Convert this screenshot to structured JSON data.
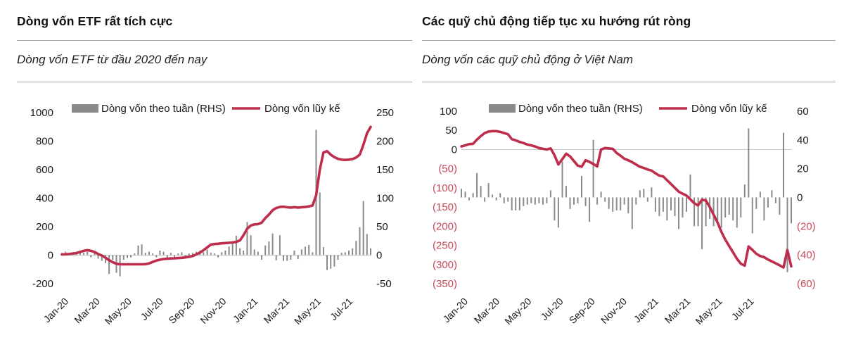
{
  "colors": {
    "line_red": "#be2d4b",
    "negative_tick_label_red": "#c84a5c",
    "bar_gray": "#8a8a8a",
    "grid_gray": "#c9c9c9",
    "text_dark": "#1a1a1a",
    "divider_gray": "#a6a6a6"
  },
  "chart_data": [
    {
      "type": "combo bar+line",
      "title": "Dòng vốn ETF rất tích cực",
      "subtitle": "Dòng vốn ETF từ đầu 2020 đến nay",
      "x_unit": "week",
      "x_tick_labels": [
        "Jan-20",
        "Mar-20",
        "May-20",
        "Jul-20",
        "Sep-20",
        "Nov-20",
        "Jan-21",
        "Mar-21",
        "May-21",
        "Jul-21"
      ],
      "left_axis": {
        "min": -200,
        "max": 1000,
        "ticks": [
          "1000",
          "800",
          "600",
          "400",
          "200",
          "0",
          "-200"
        ]
      },
      "right_axis": {
        "min": -50,
        "max": 250,
        "ticks": [
          "250",
          "200",
          "150",
          "100",
          "50",
          "0",
          "-50"
        ]
      },
      "grid": "zero-line only",
      "legend_position": "top",
      "series": [
        {
          "name": "Dòng vốn theo tuần (RHS)",
          "type": "bar",
          "axis": "right",
          "values": [
            4,
            6,
            3,
            5,
            6,
            8,
            4,
            6,
            -4,
            5,
            -6,
            -10,
            -14,
            -33,
            -8,
            -31,
            -37,
            -8,
            -5,
            -4,
            3,
            17,
            19,
            4,
            6,
            3,
            -4,
            8,
            6,
            -5,
            4,
            -6,
            3,
            5,
            -4,
            3,
            4,
            6,
            8,
            5,
            10,
            4,
            3,
            -4,
            5,
            8,
            15,
            22,
            34,
            12,
            8,
            58,
            35,
            10,
            6,
            -8,
            17,
            24,
            38,
            -9,
            35,
            -10,
            -10,
            -8,
            8,
            -7,
            10,
            15,
            18,
            5,
            220,
            110,
            14,
            -26,
            -24,
            -20,
            -8,
            4,
            5,
            8,
            12,
            25,
            49,
            95,
            37,
            12
          ]
        },
        {
          "name": "Dòng vốn lũy kế",
          "type": "line",
          "axis": "left",
          "values": [
            5,
            6,
            8,
            11,
            15,
            22,
            30,
            35,
            30,
            22,
            8,
            -2,
            -18,
            -35,
            -50,
            -60,
            -64,
            -64,
            -64,
            -64,
            -64,
            -64,
            -64,
            -63,
            -58,
            -48,
            -38,
            -32,
            -27,
            -25,
            -23,
            -22,
            -20,
            -19,
            -16,
            -12,
            -6,
            5,
            18,
            35,
            55,
            74,
            78,
            80,
            83,
            85,
            87,
            89,
            93,
            103,
            140,
            185,
            208,
            216,
            218,
            228,
            260,
            285,
            315,
            331,
            338,
            340,
            336,
            334,
            337,
            334,
            336,
            338,
            342,
            348,
            420,
            600,
            720,
            730,
            705,
            688,
            676,
            670,
            668,
            670,
            674,
            685,
            705,
            775,
            855,
            900
          ]
        }
      ]
    },
    {
      "type": "combo bar+line",
      "title": "Các quỹ chủ động tiếp tục xu hướng rút ròng",
      "subtitle": "Dòng vốn các quỹ chủ động ở Việt Nam",
      "x_unit": "week",
      "x_tick_labels": [
        "Jan-20",
        "Mar-20",
        "May-20",
        "Jul-20",
        "Sep-20",
        "Nov-20",
        "Jan-21",
        "Mar-21",
        "May-21",
        "Jul-21"
      ],
      "left_axis": {
        "min": -350,
        "max": 100,
        "ticks": [
          "100",
          "50",
          "0",
          "(50)",
          "(100)",
          "(150)",
          "(200)",
          "(250)",
          "(300)",
          "(350)"
        ]
      },
      "right_axis": {
        "min": -60,
        "max": 60,
        "ticks": [
          "60",
          "40",
          "20",
          "0",
          "(20)",
          "(40)",
          "(60)"
        ]
      },
      "grid": "zero-line only",
      "legend_position": "top",
      "series": [
        {
          "name": "Dòng vốn theo tuần (RHS)",
          "type": "bar",
          "axis": "right",
          "values": [
            6,
            4,
            -2,
            3,
            17,
            8,
            -3,
            10,
            2,
            -2,
            3,
            -4,
            -3,
            -9,
            -9,
            -9,
            -6,
            -5,
            -4,
            -5,
            -4,
            -5,
            -4,
            5,
            -16,
            -21,
            25,
            8,
            -8,
            -5,
            -4,
            15,
            -6,
            -17,
            40,
            -5,
            4,
            -3,
            -8,
            -10,
            -9,
            -9,
            -5,
            -11,
            -22,
            -5,
            5,
            6,
            -3,
            7,
            -10,
            -13,
            -10,
            -16,
            -9,
            -13,
            -22,
            -14,
            -10,
            16,
            -20,
            -20,
            -36,
            -20,
            -15,
            -20,
            -16,
            -21,
            -14,
            -12,
            -16,
            -21,
            -14,
            9,
            48,
            -25,
            -8,
            4,
            -16,
            -7,
            5,
            -4,
            -12,
            45,
            -52,
            -18
          ]
        },
        {
          "name": "Dòng vốn lũy kế",
          "type": "line",
          "axis": "left",
          "values": [
            8,
            11,
            14,
            15,
            26,
            35,
            43,
            47,
            48,
            48,
            46,
            43,
            40,
            27,
            24,
            20,
            17,
            13,
            11,
            8,
            4,
            2,
            0,
            3,
            -15,
            -39,
            -25,
            -11,
            -18,
            -30,
            -42,
            -45,
            -28,
            -32,
            -38,
            -44,
            0,
            4,
            3,
            2,
            -9,
            -16,
            -24,
            -28,
            -33,
            -39,
            -45,
            -48,
            -52,
            -55,
            -62,
            -68,
            -70,
            -80,
            -90,
            -100,
            -110,
            -115,
            -120,
            -130,
            -140,
            -146,
            -131,
            -133,
            -150,
            -170,
            -190,
            -215,
            -235,
            -252,
            -268,
            -285,
            -298,
            -303,
            -253,
            -262,
            -272,
            -278,
            -281,
            -287,
            -292,
            -297,
            -302,
            -308,
            -262,
            -305
          ]
        }
      ]
    }
  ]
}
